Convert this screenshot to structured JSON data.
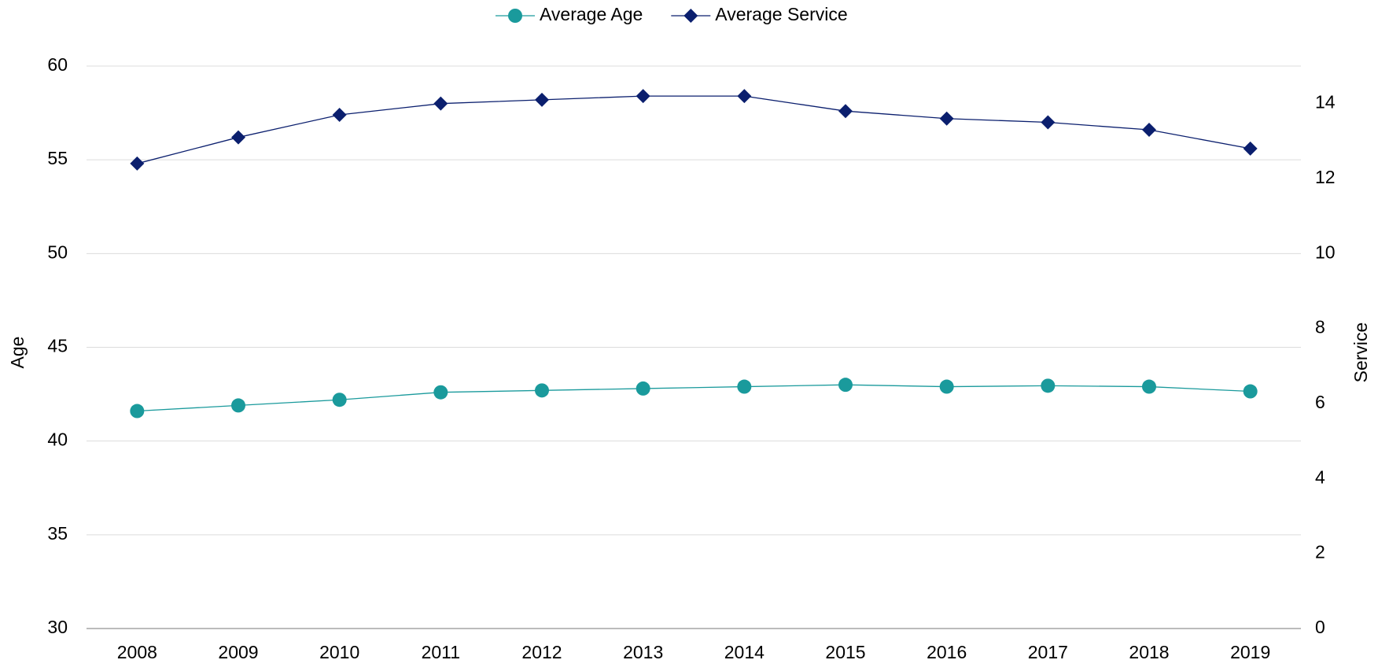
{
  "chart_data": {
    "type": "line",
    "categories": [
      "2008",
      "2009",
      "2010",
      "2011",
      "2012",
      "2013",
      "2014",
      "2015",
      "2016",
      "2017",
      "2018",
      "2019"
    ],
    "series": [
      {
        "name": "Average Age",
        "color": "#1a9a9c",
        "marker": "circle",
        "values": [
          41.6,
          41.9,
          42.2,
          42.6,
          42.7,
          42.8,
          42.9,
          43.0,
          42.9,
          42.95,
          42.9,
          42.65
        ]
      },
      {
        "name": "Average Service",
        "color": "#0b1f6e",
        "marker": "diamond",
        "axis": "y2",
        "values": [
          12.4,
          13.1,
          13.7,
          14.0,
          14.1,
          14.2,
          14.2,
          13.8,
          13.6,
          13.5,
          13.3,
          12.8
        ]
      }
    ],
    "ylabel": "Age",
    "y2label": "Service",
    "ylim": [
      30,
      60
    ],
    "yticks": [
      30,
      35,
      40,
      45,
      50,
      55,
      60
    ],
    "y2lim": [
      0,
      15
    ],
    "y2ticks": [
      0,
      2,
      4,
      6,
      8,
      10,
      12,
      14
    ],
    "grid": true,
    "legend": "top"
  }
}
